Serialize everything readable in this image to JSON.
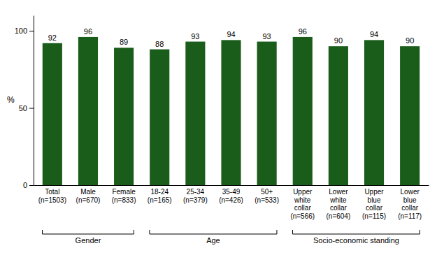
{
  "chart_data": {
    "type": "bar",
    "categories": [
      "Total\n(n=1503)",
      "Male\n(n=670)",
      "Female\n(n=833)",
      "18-24\n(n=165)",
      "25-34\n(n=379)",
      "35-49\n(n=426)",
      "50+\n(n=533)",
      "Upper\nwhite\ncollar\n(n=566)",
      "Lower\nwhite\ncollar\n(n=604)",
      "Upper\nblue\ncollar\n(n=115)",
      "Lower\nblue\ncollar\n(n=117)"
    ],
    "values": [
      92,
      96,
      89,
      88,
      93,
      94,
      93,
      96,
      90,
      94,
      90
    ],
    "color": "#1a5c1a",
    "ylim": [
      0,
      110
    ],
    "yticks": [
      0,
      50,
      100
    ],
    "ylabel": "%",
    "data_labels": true,
    "grid": false,
    "groups": [
      {
        "label": "Gender",
        "span": [
          0,
          2
        ]
      },
      {
        "label": "Age",
        "span": [
          3,
          6
        ]
      },
      {
        "label": "Socio-economic standing",
        "span": [
          7,
          10
        ]
      }
    ]
  }
}
